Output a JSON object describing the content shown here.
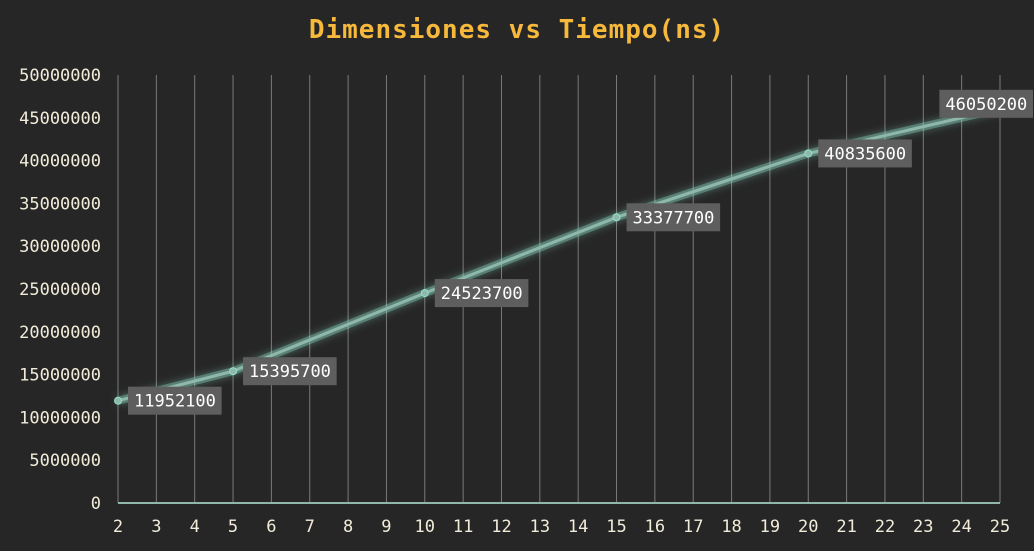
{
  "chart_data": {
    "type": "line",
    "title": "Dimensiones vs Tiempo(ns)",
    "xlabel": "",
    "ylabel": "",
    "x_ticks": [
      2,
      3,
      4,
      5,
      6,
      7,
      8,
      9,
      10,
      11,
      12,
      13,
      14,
      15,
      16,
      17,
      18,
      19,
      20,
      21,
      22,
      23,
      24,
      25
    ],
    "xlim": [
      2,
      25
    ],
    "ylim": [
      0,
      50000000
    ],
    "y_ticks": [
      0,
      5000000,
      10000000,
      15000000,
      20000000,
      25000000,
      30000000,
      35000000,
      40000000,
      45000000,
      50000000
    ],
    "grid": "vertical",
    "legend": "none",
    "series": [
      {
        "x": [
          2,
          5,
          10,
          15,
          20,
          25
        ],
        "values": [
          11952100,
          15395700,
          24523700,
          33377700,
          40835600,
          46050200
        ],
        "labels": [
          "11952100",
          "15395700",
          "24523700",
          "33377700",
          "40835600",
          "46050200"
        ]
      }
    ],
    "colors": {
      "background": "#262626",
      "title": "#f6b93b",
      "tick_text": "#f1ecd9",
      "grid": "#7a7a7a",
      "line": "#8fb8ab",
      "glow": "#8fe0c8",
      "label_box": "#5e5e5e",
      "label_text": "#ffffff"
    }
  }
}
